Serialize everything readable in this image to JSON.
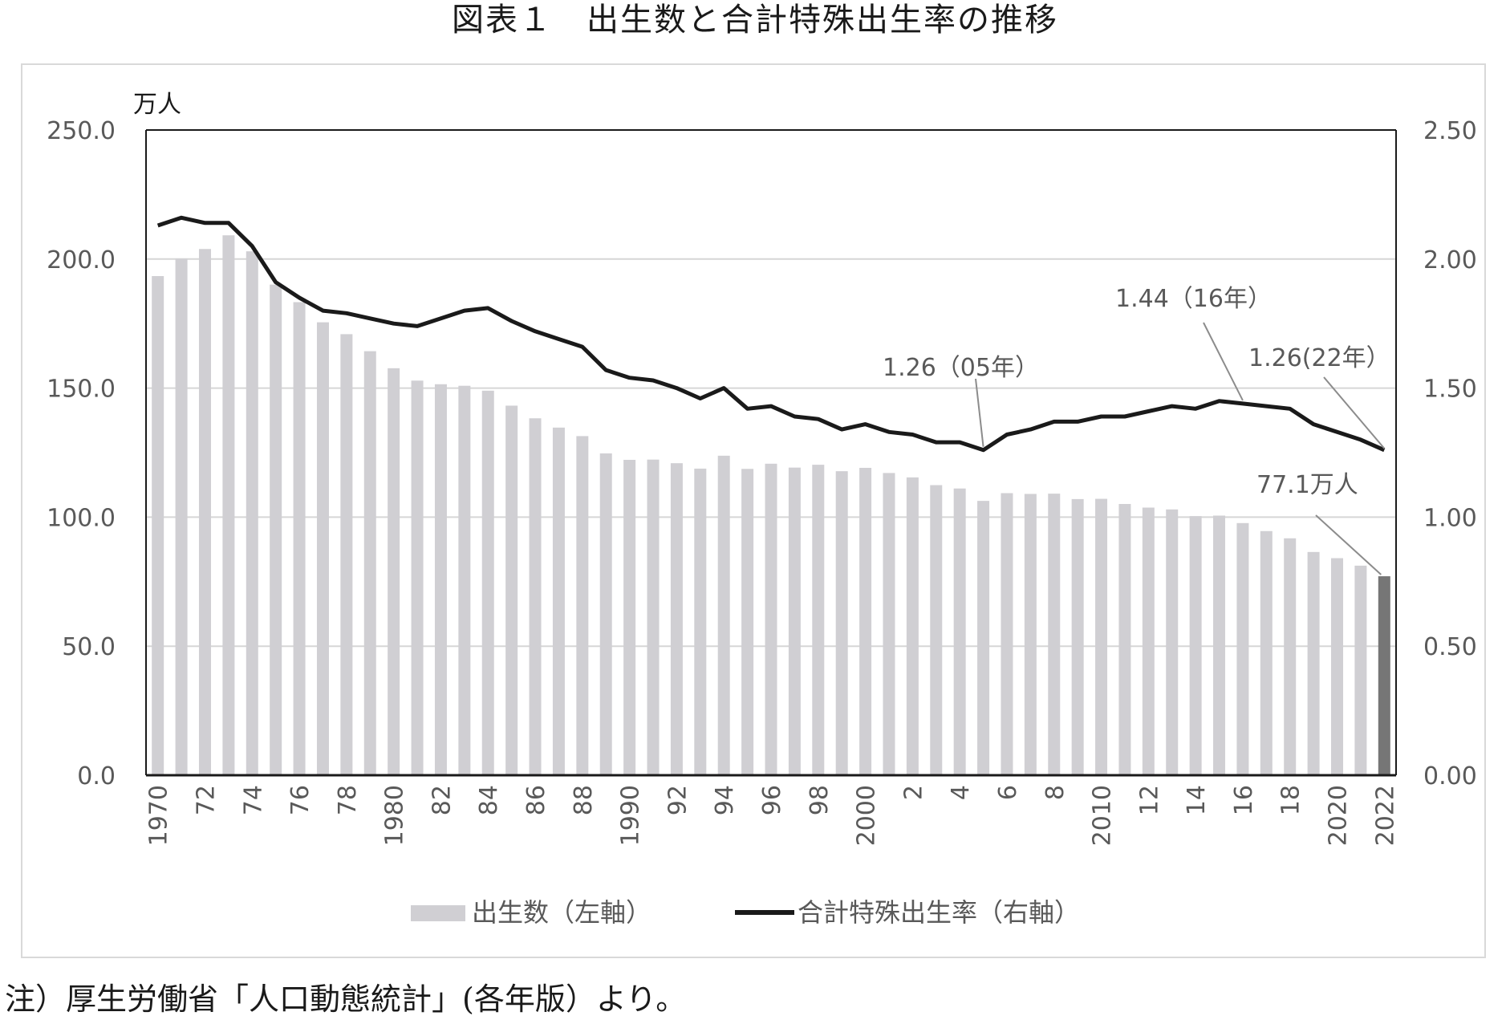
{
  "title": "図表１　出生数と合計特殊出生率の推移",
  "note": "注）厚生労働省「人口動態統計」(各年版）より。",
  "chart_data": {
    "type": "bar+line",
    "title": "図表１　出生数と合計特殊出生率の推移",
    "left_axis_unit": "万人",
    "left_ylim": [
      0,
      250
    ],
    "right_ylim": [
      0,
      2.5
    ],
    "left_ticks": [
      "0.0",
      "50.0",
      "100.0",
      "150.0",
      "200.0",
      "250.0"
    ],
    "right_ticks": [
      "0.00",
      "0.50",
      "1.00",
      "1.50",
      "2.00",
      "2.50"
    ],
    "grid": true,
    "legend_position": "bottom",
    "x": [
      1970,
      1971,
      1972,
      1973,
      1974,
      1975,
      1976,
      1977,
      1978,
      1979,
      1980,
      1981,
      1982,
      1983,
      1984,
      1985,
      1986,
      1987,
      1988,
      1989,
      1990,
      1991,
      1992,
      1993,
      1994,
      1995,
      1996,
      1997,
      1998,
      1999,
      2000,
      2001,
      2002,
      2003,
      2004,
      2005,
      2006,
      2007,
      2008,
      2009,
      2010,
      2011,
      2012,
      2013,
      2014,
      2015,
      2016,
      2017,
      2018,
      2019,
      2020,
      2021,
      2022
    ],
    "x_tick_labels": [
      "1970",
      "",
      "72",
      "",
      "74",
      "",
      "76",
      "",
      "78",
      "",
      "1980",
      "",
      "82",
      "",
      "84",
      "",
      "86",
      "",
      "88",
      "",
      "1990",
      "",
      "92",
      "",
      "94",
      "",
      "96",
      "",
      "98",
      "",
      "2000",
      "",
      "2",
      "",
      "4",
      "",
      "6",
      "",
      "8",
      "",
      "2010",
      "",
      "12",
      "",
      "14",
      "",
      "16",
      "",
      "18",
      "",
      "2020",
      "",
      "2022"
    ],
    "series": [
      {
        "name": "出生数（左軸）",
        "type": "bar",
        "axis": "left",
        "color": "#d0cfd3",
        "highlight_color": "#767676",
        "values": [
          193.4,
          200.1,
          203.9,
          209.2,
          203.0,
          190.1,
          183.3,
          175.5,
          170.9,
          164.3,
          157.7,
          152.9,
          151.5,
          150.9,
          149.0,
          143.2,
          138.3,
          134.7,
          131.4,
          124.7,
          122.2,
          122.3,
          120.9,
          118.8,
          123.8,
          118.7,
          120.7,
          119.2,
          120.3,
          117.8,
          119.1,
          117.1,
          115.4,
          112.4,
          111.1,
          106.3,
          109.3,
          109.0,
          109.1,
          107.0,
          107.1,
          105.1,
          103.7,
          103.0,
          100.4,
          100.6,
          97.7,
          94.6,
          91.8,
          86.5,
          84.1,
          81.2,
          77.1
        ]
      },
      {
        "name": "合計特殊出生率（右軸）",
        "type": "line",
        "axis": "right",
        "color": "#1a1a1a",
        "values": [
          2.13,
          2.16,
          2.14,
          2.14,
          2.05,
          1.91,
          1.85,
          1.8,
          1.79,
          1.77,
          1.75,
          1.74,
          1.77,
          1.8,
          1.81,
          1.76,
          1.72,
          1.69,
          1.66,
          1.57,
          1.54,
          1.53,
          1.5,
          1.46,
          1.5,
          1.42,
          1.43,
          1.39,
          1.38,
          1.34,
          1.36,
          1.33,
          1.32,
          1.29,
          1.29,
          1.26,
          1.32,
          1.34,
          1.37,
          1.37,
          1.39,
          1.39,
          1.41,
          1.43,
          1.42,
          1.45,
          1.44,
          1.43,
          1.42,
          1.36,
          1.33,
          1.3,
          1.26
        ]
      }
    ],
    "annotations": [
      {
        "text": "1.26（05年）",
        "year": 2005
      },
      {
        "text": "1.44（16年）",
        "year": 2016
      },
      {
        "text": "1.26(22年）",
        "year": 2022
      },
      {
        "text": "77.1万人",
        "year": 2022
      }
    ]
  }
}
